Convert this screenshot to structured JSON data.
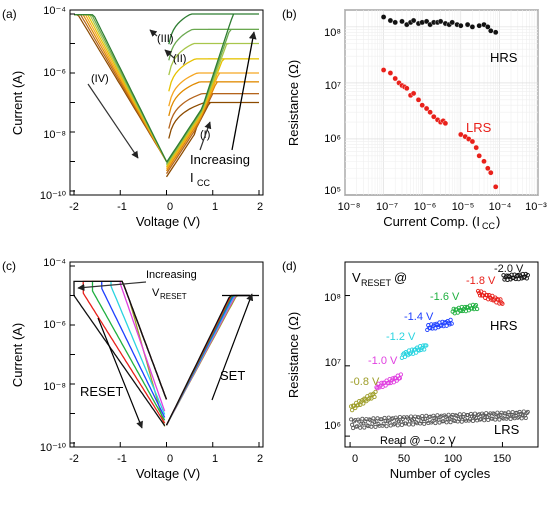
{
  "chart_data": [
    {
      "panel_label": "(a)",
      "type": "line",
      "xlabel": "Voltage (V)",
      "ylabel": "Current (A)",
      "xlim": [
        -2,
        2
      ],
      "ylim": [
        1e-10,
        0.0001
      ],
      "yscale": "log",
      "x_ticks": [
        "-2",
        "-1",
        "0",
        "1",
        "2"
      ],
      "y_ticks": [
        "10⁻¹⁰",
        "10⁻⁸",
        "10⁻⁶",
        "10⁻⁴"
      ],
      "annotations": [
        "(I)",
        "(II)",
        "(III)",
        "(IV)",
        "Increasing",
        "I",
        "CC"
      ],
      "series": [
        {
          "compliance": 1e-07,
          "color": "#8c4b00"
        },
        {
          "compliance": 2e-07,
          "color": "#b5651d"
        },
        {
          "compliance": 5e-07,
          "color": "#e08a00"
        },
        {
          "compliance": 1e-06,
          "color": "#f5a623"
        },
        {
          "compliance": 3e-06,
          "color": "#e6c200"
        },
        {
          "compliance": 1e-05,
          "color": "#a8c64b"
        },
        {
          "compliance": 3e-05,
          "color": "#6aa84f"
        },
        {
          "compliance": 0.0001,
          "color": "#2e7d32"
        }
      ]
    },
    {
      "panel_label": "(b)",
      "type": "scatter",
      "xlabel": "Current Comp. (I",
      "xlabel_sub": "CC",
      "xlabel_end": ")",
      "ylabel": "Resistance (Ω)",
      "xscale": "log",
      "yscale": "log",
      "xlim": [
        1e-08,
        0.001
      ],
      "ylim": [
        100000.0,
        200000000.0
      ],
      "x_ticks": [
        "10⁻⁸",
        "10⁻⁷",
        "10⁻⁶",
        "10⁻⁵",
        "10⁻⁴",
        "10⁻³"
      ],
      "y_ticks": [
        "10⁵",
        "10⁶",
        "10⁷",
        "10⁸"
      ],
      "series": [
        {
          "name": "HRS",
          "color": "#111111",
          "x": [
            1e-07,
            1.5e-07,
            2e-07,
            3e-07,
            4e-07,
            5e-07,
            6e-07,
            8e-07,
            1e-06,
            1.3e-06,
            1.6e-06,
            2e-06,
            2.5e-06,
            3e-06,
            4e-06,
            5e-06,
            6e-06,
            8e-06,
            1e-05,
            1.5e-05,
            2e-05,
            3e-05,
            4e-05,
            5e-05,
            6e-05,
            8e-05
          ],
          "y": [
            150000000.0,
            130000000.0,
            120000000.0,
            125000000.0,
            110000000.0,
            120000000.0,
            130000000.0,
            115000000.0,
            120000000.0,
            125000000.0,
            110000000.0,
            120000000.0,
            120000000.0,
            125000000.0,
            115000000.0,
            110000000.0,
            120000000.0,
            110000000.0,
            105000000.0,
            110000000.0,
            100000000.0,
            105000000.0,
            110000000.0,
            100000000.0,
            85000000.0,
            80000000.0
          ]
        },
        {
          "name": "LRS",
          "color": "#e8201a",
          "x": [
            1e-07,
            1.5e-07,
            2e-07,
            2.5e-07,
            3e-07,
            3.5e-07,
            4e-07,
            5e-07,
            6e-07,
            8e-07,
            1e-06,
            1.3e-06,
            1.6e-06,
            2e-06,
            2.5e-06,
            3e-06,
            3.5e-06,
            4e-06,
            1e-05,
            1.3e-05,
            1.6e-05,
            2e-05,
            2.5e-05,
            3e-05,
            4e-05,
            5e-05,
            6e-05,
            8e-05
          ],
          "y": [
            17000000.0,
            15000000.0,
            12000000.0,
            10000000.0,
            9000000.0,
            8500000.0,
            8000000.0,
            6000000.0,
            6500000.0,
            5000000.0,
            4000000.0,
            3500000.0,
            3000000.0,
            2500000.0,
            2200000.0,
            2000000.0,
            2100000.0,
            1900000.0,
            1200000.0,
            1100000.0,
            1000000.0,
            900000.0,
            700000.0,
            500000.0,
            400000.0,
            300000.0,
            250000.0,
            140000.0
          ]
        }
      ]
    },
    {
      "panel_label": "(c)",
      "type": "line",
      "xlabel": "Voltage (V)",
      "ylabel": "Current (A)",
      "xlim": [
        -2,
        2
      ],
      "ylim": [
        1e-10,
        0.0001
      ],
      "yscale": "log",
      "x_ticks": [
        "-2",
        "-1",
        "0",
        "1",
        "2"
      ],
      "y_ticks": [
        "10⁻¹⁰",
        "10⁻⁸",
        "10⁻⁶",
        "10⁻⁴"
      ],
      "annotations": [
        "Increasing",
        "V",
        "RESET",
        "RESET",
        "SET"
      ],
      "series": [
        {
          "reset_voltage": -0.8,
          "color": "#9e9e2a"
        },
        {
          "reset_voltage": -1.0,
          "color": "#e040e0"
        },
        {
          "reset_voltage": -1.2,
          "color": "#2ad4e0"
        },
        {
          "reset_voltage": -1.4,
          "color": "#1e40ff"
        },
        {
          "reset_voltage": -1.6,
          "color": "#20b040"
        },
        {
          "reset_voltage": -1.8,
          "color": "#e8201a"
        },
        {
          "reset_voltage": -2.0,
          "color": "#111111"
        }
      ]
    },
    {
      "panel_label": "(d)",
      "type": "scatter",
      "xlabel": "Number of cycles",
      "ylabel": "Resistance (Ω)",
      "yscale": "log",
      "xlim": [
        -5,
        185
      ],
      "ylim": [
        700000.0,
        300000000.0
      ],
      "x_ticks": [
        "0",
        "50",
        "100",
        "150"
      ],
      "y_ticks": [
        "10⁶",
        "10⁷",
        "10⁸"
      ],
      "title_main": "V",
      "title_sub": "RESET",
      "title_end": "@",
      "annotations": [
        "HRS",
        "LRS",
        "Read @ −0.2 V"
      ],
      "lrs": {
        "name": "LRS",
        "color": "#555555",
        "cycles": [
          1,
          175
        ],
        "resistance": 1500000.0
      },
      "hrs_groups": [
        {
          "label": "-0.8 V",
          "color": "#9e9e2a",
          "cycles": [
            1,
            25
          ],
          "resistance_start": 2500000.0,
          "resistance_end": 4000000.0
        },
        {
          "label": "-1.0 V",
          "color": "#e040e0",
          "cycles": [
            26,
            50
          ],
          "resistance_start": 5000000.0,
          "resistance_end": 7000000.0
        },
        {
          "label": "-1.2 V",
          "color": "#2ad4e0",
          "cycles": [
            51,
            75
          ],
          "resistance_start": 14000000.0,
          "resistance_end": 19000000.0
        },
        {
          "label": "-1.4 V",
          "color": "#1e40ff",
          "cycles": [
            76,
            100
          ],
          "resistance_start": 35000000.0,
          "resistance_end": 42000000.0
        },
        {
          "label": "-1.6 V",
          "color": "#20b040",
          "cycles": [
            101,
            125
          ],
          "resistance_start": 60000000.0,
          "resistance_end": 70000000.0
        },
        {
          "label": "-1.8 V",
          "color": "#e8201a",
          "cycles": [
            126,
            150
          ],
          "resistance_start": 110000000.0,
          "resistance_end": 80000000.0
        },
        {
          "label": "-2.0 V",
          "color": "#111111",
          "cycles": [
            151,
            175
          ],
          "resistance_start": 180000000.0,
          "resistance_end": 190000000.0
        }
      ]
    }
  ]
}
